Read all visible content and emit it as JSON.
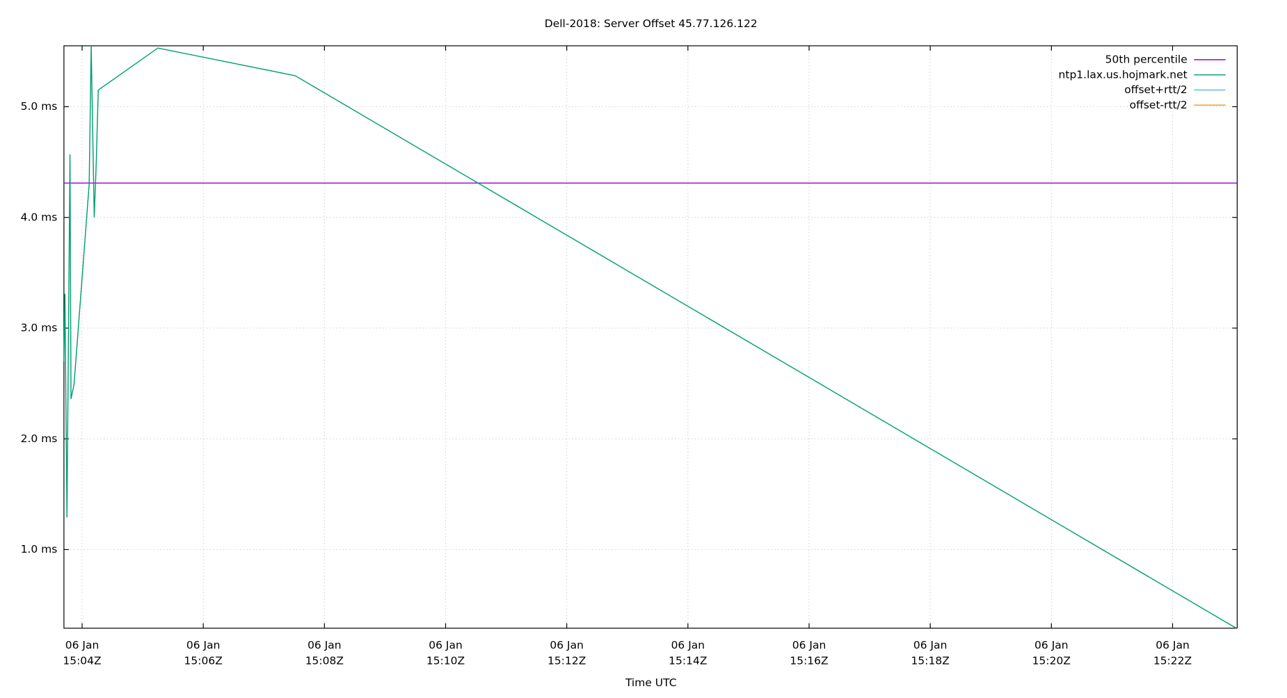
{
  "chart_data": {
    "type": "line",
    "title": "Dell-2018: Server Offset 45.77.126.122",
    "xlabel": "Time UTC",
    "x": [
      "15:03:42",
      "15:03:43",
      "15:03:45",
      "15:03:48",
      "15:03:49",
      "15:03:52",
      "15:04:07",
      "15:04:09",
      "15:04:12",
      "15:04:14",
      "15:04:16",
      "15:05:15",
      "15:07:31",
      "15:23:03"
    ],
    "series": [
      {
        "name": "50th percentile",
        "color": "#9400d3",
        "hline": 4.31
      },
      {
        "name": "ntp1.lax.us.hojmark.net",
        "color": "#009e73",
        "values": [
          2.7,
          3.31,
          1.29,
          4.57,
          2.36,
          2.49,
          4.3,
          5.55,
          4.0,
          4.49,
          5.15,
          5.53,
          5.28,
          0.29
        ]
      },
      {
        "name": "offset+rtt/2",
        "color": "#56b4e9"
      },
      {
        "name": "offset-rtt/2",
        "color": "#e69f00"
      }
    ],
    "xlim": [
      "15:03:42",
      "15:23:04"
    ],
    "xticks": [
      {
        "value": "15:04",
        "label": [
          "06 Jan",
          "15:04Z"
        ]
      },
      {
        "value": "15:06",
        "label": [
          "06 Jan",
          "15:06Z"
        ]
      },
      {
        "value": "15:08",
        "label": [
          "06 Jan",
          "15:08Z"
        ]
      },
      {
        "value": "15:10",
        "label": [
          "06 Jan",
          "15:10Z"
        ]
      },
      {
        "value": "15:12",
        "label": [
          "06 Jan",
          "15:12Z"
        ]
      },
      {
        "value": "15:14",
        "label": [
          "06 Jan",
          "15:14Z"
        ]
      },
      {
        "value": "15:16",
        "label": [
          "06 Jan",
          "15:16Z"
        ]
      },
      {
        "value": "15:18",
        "label": [
          "06 Jan",
          "15:18Z"
        ]
      },
      {
        "value": "15:20",
        "label": [
          "06 Jan",
          "15:20Z"
        ]
      },
      {
        "value": "15:22",
        "label": [
          "06 Jan",
          "15:22Z"
        ]
      }
    ],
    "ylim": [
      0.29,
      5.55
    ],
    "yticks": [
      {
        "value": 1,
        "label": "1.0 ms"
      },
      {
        "value": 2,
        "label": "2.0 ms"
      },
      {
        "value": 3,
        "label": "3.0 ms"
      },
      {
        "value": 4,
        "label": "4.0 ms"
      },
      {
        "value": 5,
        "label": "5.0 ms"
      }
    ],
    "grid": true,
    "legend": "top-right"
  }
}
